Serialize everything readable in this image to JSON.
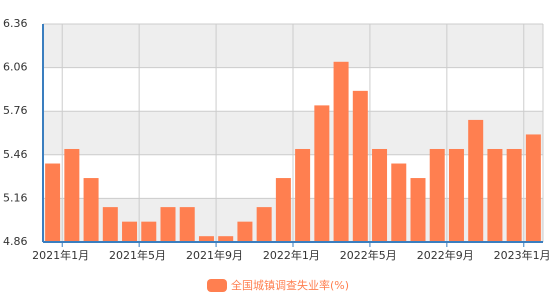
{
  "chart_data": {
    "type": "bar",
    "categories": [
      "2021年1月",
      null,
      null,
      null,
      "2021年5月",
      null,
      null,
      null,
      "2021年9月",
      null,
      null,
      null,
      "2022年1月",
      null,
      null,
      null,
      "2022年5月",
      null,
      null,
      null,
      "2022年9月",
      null,
      null,
      null,
      "2023年1月",
      null
    ],
    "series": [
      {
        "name": "全国城镇调查失业率(%)",
        "color": "#ff7f50",
        "values": [
          5.4,
          5.5,
          5.3,
          5.1,
          5.0,
          5.0,
          5.1,
          5.1,
          4.9,
          4.9,
          5.0,
          5.1,
          5.3,
          5.5,
          5.8,
          6.1,
          5.9,
          5.5,
          5.4,
          5.3,
          5.5,
          5.5,
          5.7,
          5.5,
          5.5,
          5.6
        ]
      }
    ],
    "ylim": [
      4.86,
      6.36
    ],
    "yticks": [
      4.86,
      5.16,
      5.46,
      5.76,
      6.06,
      6.36
    ],
    "grid": true,
    "legend": "bottom"
  }
}
